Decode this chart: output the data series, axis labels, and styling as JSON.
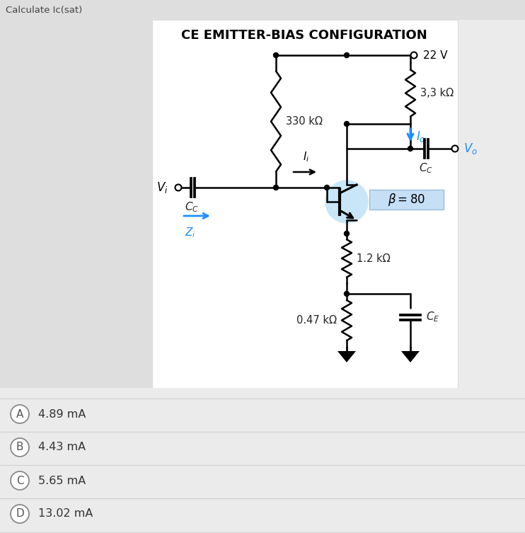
{
  "title": "CE EMITTER-BIAS CONFIGURATION",
  "top_label": "Calculate Ic(sat)",
  "bg_color": "#ebebeb",
  "white_panel_bg": "#ffffff",
  "supply_voltage": "22 V",
  "r1_label": "330 kΩ",
  "r2_label": "3,3 kΩ",
  "r3_label": "1.2 kΩ",
  "r4_label": "0.47 kΩ",
  "beta_label": "β = 80",
  "answers": [
    {
      "letter": "A",
      "text": "4.89 mA"
    },
    {
      "letter": "B",
      "text": "4.43 mA"
    },
    {
      "letter": "C",
      "text": "5.65 mA"
    },
    {
      "letter": "D",
      "text": "13.02 mA"
    }
  ],
  "blue_color": "#1E90FF",
  "light_blue_transistor": "#c8e6f8",
  "beta_box_color": "#c5dff5"
}
